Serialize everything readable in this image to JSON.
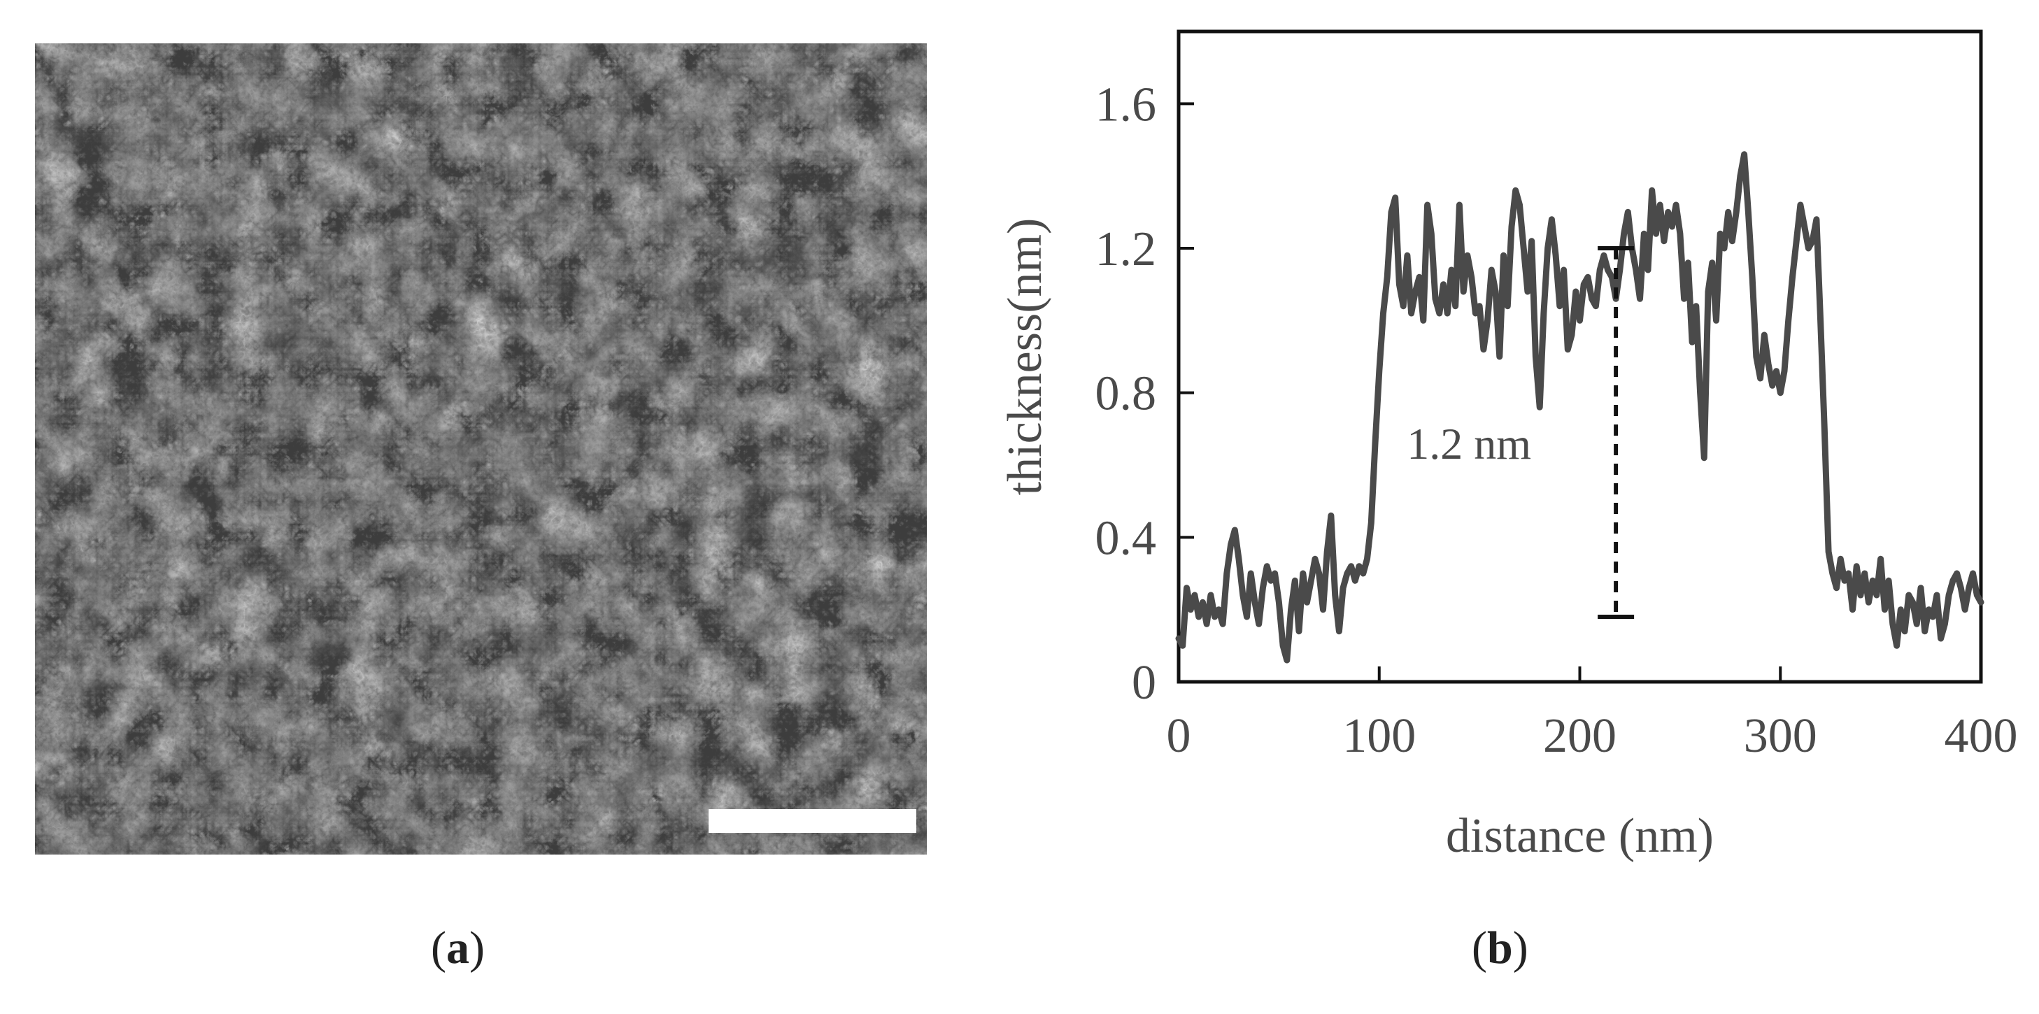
{
  "panels": {
    "a": {
      "open": "(",
      "letter": "a",
      "close": ")"
    },
    "b": {
      "open": "(",
      "letter": "b",
      "close": ")"
    }
  },
  "sem_image": {
    "description_icon": "sem-micrograph-image",
    "scale_bar_color": "#ffffff"
  },
  "colors": {
    "line": "#4a4a4a",
    "axis": "#111111",
    "text": "#4a4a4a"
  },
  "chart_data": {
    "type": "line",
    "title": "",
    "xlabel": "distance (nm)",
    "ylabel": "thickness(nm)",
    "xlim": [
      0,
      400
    ],
    "ylim": [
      0,
      1.8
    ],
    "xticks": [
      0,
      100,
      200,
      300,
      400
    ],
    "xtick_labels": [
      "0",
      "100",
      "200",
      "300",
      "400"
    ],
    "yticks": [
      0,
      0.4,
      0.8,
      1.2,
      1.6
    ],
    "ytick_labels": [
      "0",
      "0.4",
      "0.8",
      "1.2",
      "1.6"
    ],
    "grid": false,
    "legend": "none",
    "annotation": {
      "text": "1.2 nm",
      "x": 218,
      "y_top": 1.2,
      "y_bottom": 0.18
    },
    "series": [
      {
        "x": [
          0,
          2,
          4,
          6,
          8,
          10,
          12,
          14,
          16,
          18,
          20,
          22,
          24,
          26,
          28,
          30,
          32,
          34,
          36,
          38,
          40,
          42,
          44,
          46,
          48,
          50,
          52,
          54,
          56,
          58,
          60,
          62,
          64,
          66,
          68,
          70,
          72,
          74,
          76,
          78,
          80,
          82,
          84,
          86,
          88,
          90,
          92,
          94,
          96,
          98,
          100,
          102,
          104,
          106,
          108,
          110,
          112,
          114,
          116,
          118,
          120,
          122,
          124,
          126,
          128,
          130,
          132,
          134,
          136,
          138,
          140,
          142,
          144,
          146,
          148,
          150,
          152,
          154,
          156,
          158,
          160,
          162,
          164,
          166,
          168,
          170,
          172,
          174,
          176,
          178,
          180,
          182,
          184,
          186,
          188,
          190,
          192,
          194,
          196,
          198,
          200,
          202,
          204,
          206,
          208,
          210,
          212,
          214,
          216,
          218,
          220,
          222,
          224,
          226,
          228,
          230,
          232,
          234,
          236,
          238,
          240,
          242,
          244,
          246,
          248,
          250,
          252,
          254,
          256,
          258,
          260,
          262,
          264,
          266,
          268,
          270,
          272,
          274,
          276,
          278,
          280,
          282,
          284,
          286,
          288,
          290,
          292,
          294,
          296,
          298,
          300,
          302,
          304,
          306,
          308,
          310,
          312,
          314,
          316,
          318,
          320,
          322,
          324,
          326,
          328,
          330,
          332,
          334,
          336,
          338,
          340,
          342,
          344,
          346,
          348,
          350,
          352,
          354,
          356,
          358,
          360,
          362,
          364,
          366,
          368,
          370,
          372,
          374,
          376,
          378,
          380,
          382,
          384,
          386,
          388,
          390,
          392,
          394,
          396,
          398,
          400
        ],
        "y": [
          0.12,
          0.1,
          0.26,
          0.2,
          0.24,
          0.18,
          0.22,
          0.16,
          0.24,
          0.18,
          0.2,
          0.16,
          0.3,
          0.38,
          0.42,
          0.34,
          0.24,
          0.18,
          0.3,
          0.22,
          0.16,
          0.26,
          0.32,
          0.28,
          0.3,
          0.22,
          0.1,
          0.06,
          0.2,
          0.28,
          0.14,
          0.3,
          0.22,
          0.28,
          0.34,
          0.3,
          0.2,
          0.36,
          0.46,
          0.24,
          0.14,
          0.26,
          0.3,
          0.32,
          0.28,
          0.32,
          0.3,
          0.34,
          0.44,
          0.66,
          0.86,
          1.02,
          1.12,
          1.3,
          1.34,
          1.1,
          1.04,
          1.18,
          1.02,
          1.08,
          1.12,
          1.0,
          1.32,
          1.24,
          1.06,
          1.02,
          1.1,
          1.02,
          1.14,
          1.04,
          1.32,
          1.08,
          1.18,
          1.12,
          1.02,
          1.04,
          0.92,
          1.0,
          1.14,
          1.08,
          0.9,
          1.18,
          1.04,
          1.26,
          1.36,
          1.32,
          1.2,
          1.08,
          1.22,
          0.9,
          0.76,
          1.02,
          1.2,
          1.28,
          1.18,
          1.04,
          1.14,
          0.92,
          0.96,
          1.08,
          1.0,
          1.1,
          1.12,
          1.06,
          1.04,
          1.14,
          1.18,
          1.14,
          1.12,
          1.06,
          1.14,
          1.24,
          1.3,
          1.2,
          1.14,
          1.06,
          1.24,
          1.14,
          1.36,
          1.24,
          1.32,
          1.22,
          1.3,
          1.26,
          1.32,
          1.24,
          1.06,
          1.16,
          0.94,
          1.04,
          0.8,
          0.62,
          1.08,
          1.16,
          1.0,
          1.24,
          1.2,
          1.3,
          1.22,
          1.3,
          1.4,
          1.46,
          1.3,
          1.12,
          0.9,
          0.84,
          0.96,
          0.88,
          0.82,
          0.86,
          0.8,
          0.86,
          1.0,
          1.12,
          1.22,
          1.32,
          1.26,
          1.2,
          1.22,
          1.28,
          1.0,
          0.7,
          0.36,
          0.3,
          0.26,
          0.34,
          0.28,
          0.3,
          0.2,
          0.32,
          0.24,
          0.3,
          0.22,
          0.28,
          0.24,
          0.34,
          0.2,
          0.28,
          0.16,
          0.1,
          0.2,
          0.14,
          0.24,
          0.22,
          0.16,
          0.26,
          0.14,
          0.2,
          0.18,
          0.24,
          0.12,
          0.16,
          0.24,
          0.28,
          0.3,
          0.26,
          0.2,
          0.26,
          0.3,
          0.24,
          0.22
        ]
      }
    ]
  }
}
